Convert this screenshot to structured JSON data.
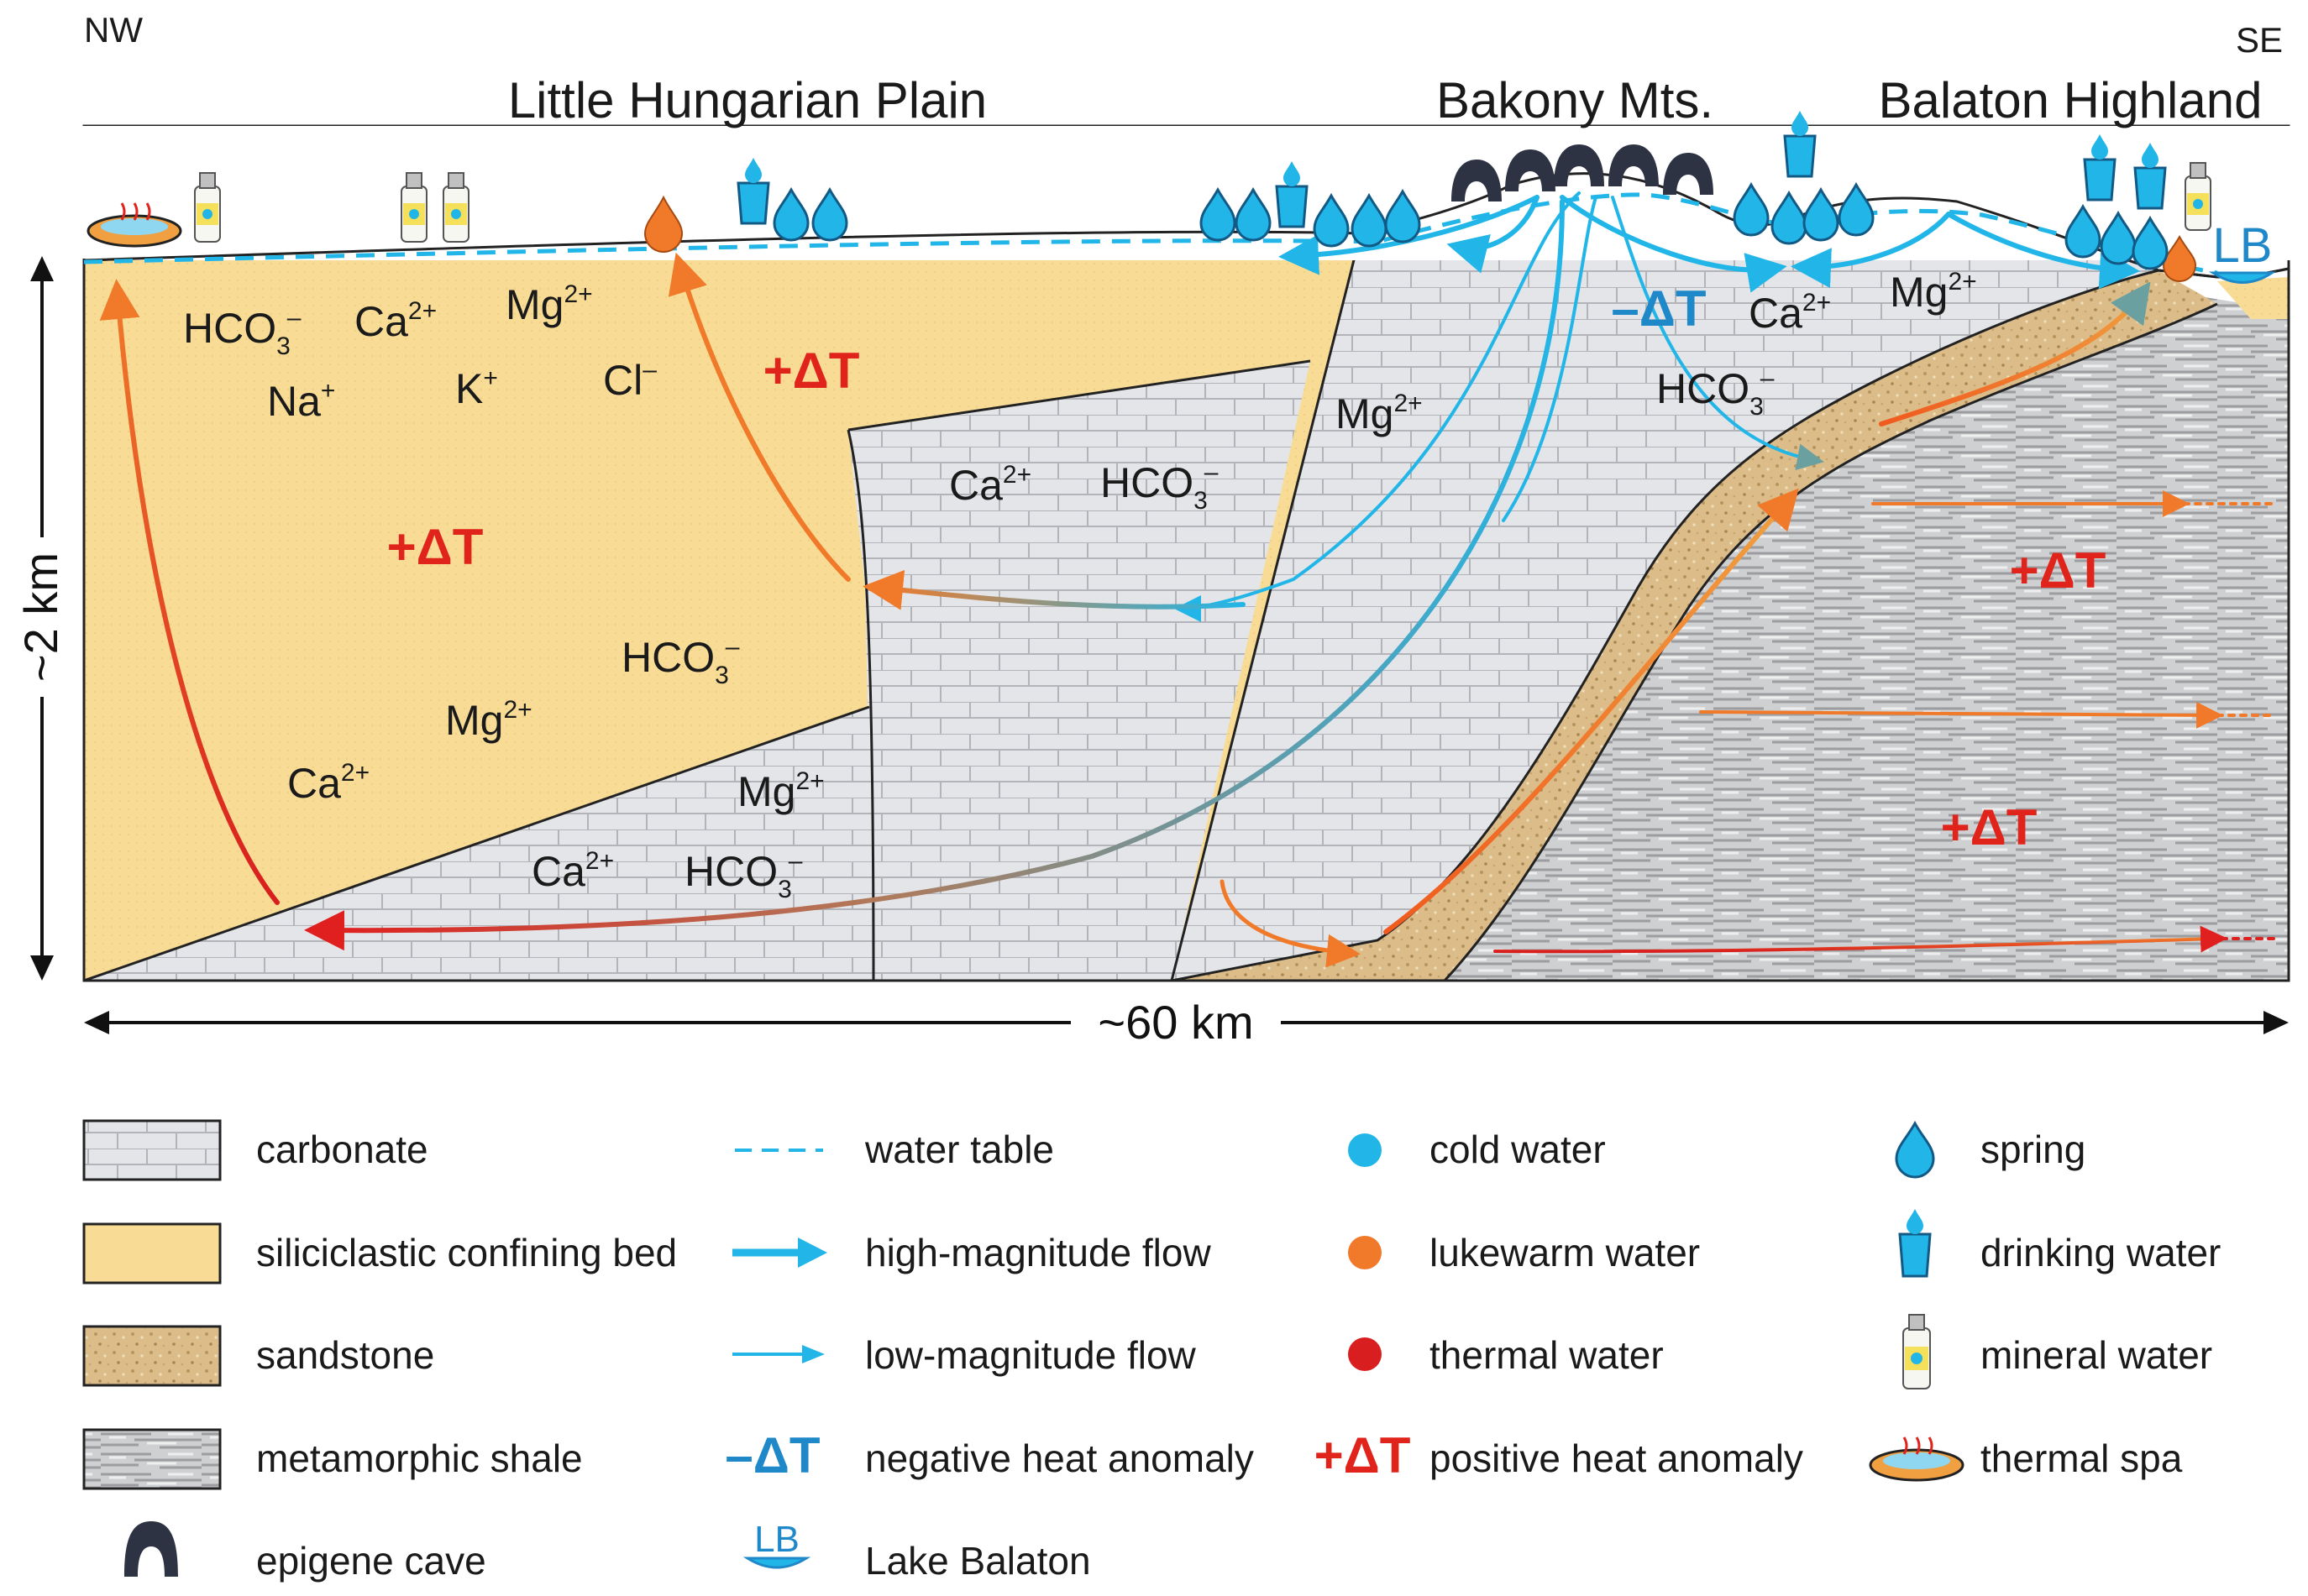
{
  "directions": {
    "left": "NW",
    "right": "SE"
  },
  "regions": {
    "plain": "Little Hungarian Plain",
    "bakony": "Bakony Mts.",
    "highland": "Balaton Highland"
  },
  "scale": {
    "depth": "~2 km",
    "width": "~60 km"
  },
  "lake_marker": "LB",
  "ions": {
    "hco3": "HCO",
    "hco3_sub": "3",
    "hco3_sup": "–",
    "ca": "Ca",
    "ca_sup": "2+",
    "mg": "Mg",
    "mg_sup": "2+",
    "na": "Na",
    "na_sup": "+",
    "k": "K",
    "k_sup": "+",
    "cl": "Cl",
    "cl_sup": "–"
  },
  "anomalies": {
    "positive": "+ΔT",
    "negative": "–ΔT"
  },
  "colors": {
    "confining": "#f8dc96",
    "carbonate": "#e4e5e8",
    "sandstone": "#d8b884",
    "shale": "#c8c9cb",
    "cold": "#22b6e8",
    "lukewarm": "#f07a2a",
    "thermal": "#d81e1e",
    "hot_text": "#e0241b",
    "cold_text": "#1e88c8"
  },
  "legend": {
    "col1": [
      "carbonate",
      "siliciclastic confining bed",
      "sandstone",
      "metamorphic shale",
      "epigene cave"
    ],
    "col2": [
      "water table",
      "high-magnitude flow",
      "low-magnitude flow",
      "negative heat anomaly",
      "Lake Balaton"
    ],
    "col3": [
      "cold water",
      "lukewarm water",
      "thermal water",
      "positive heat anomaly"
    ],
    "col4": [
      "spring",
      "drinking water",
      "mineral water",
      "thermal spa"
    ]
  }
}
